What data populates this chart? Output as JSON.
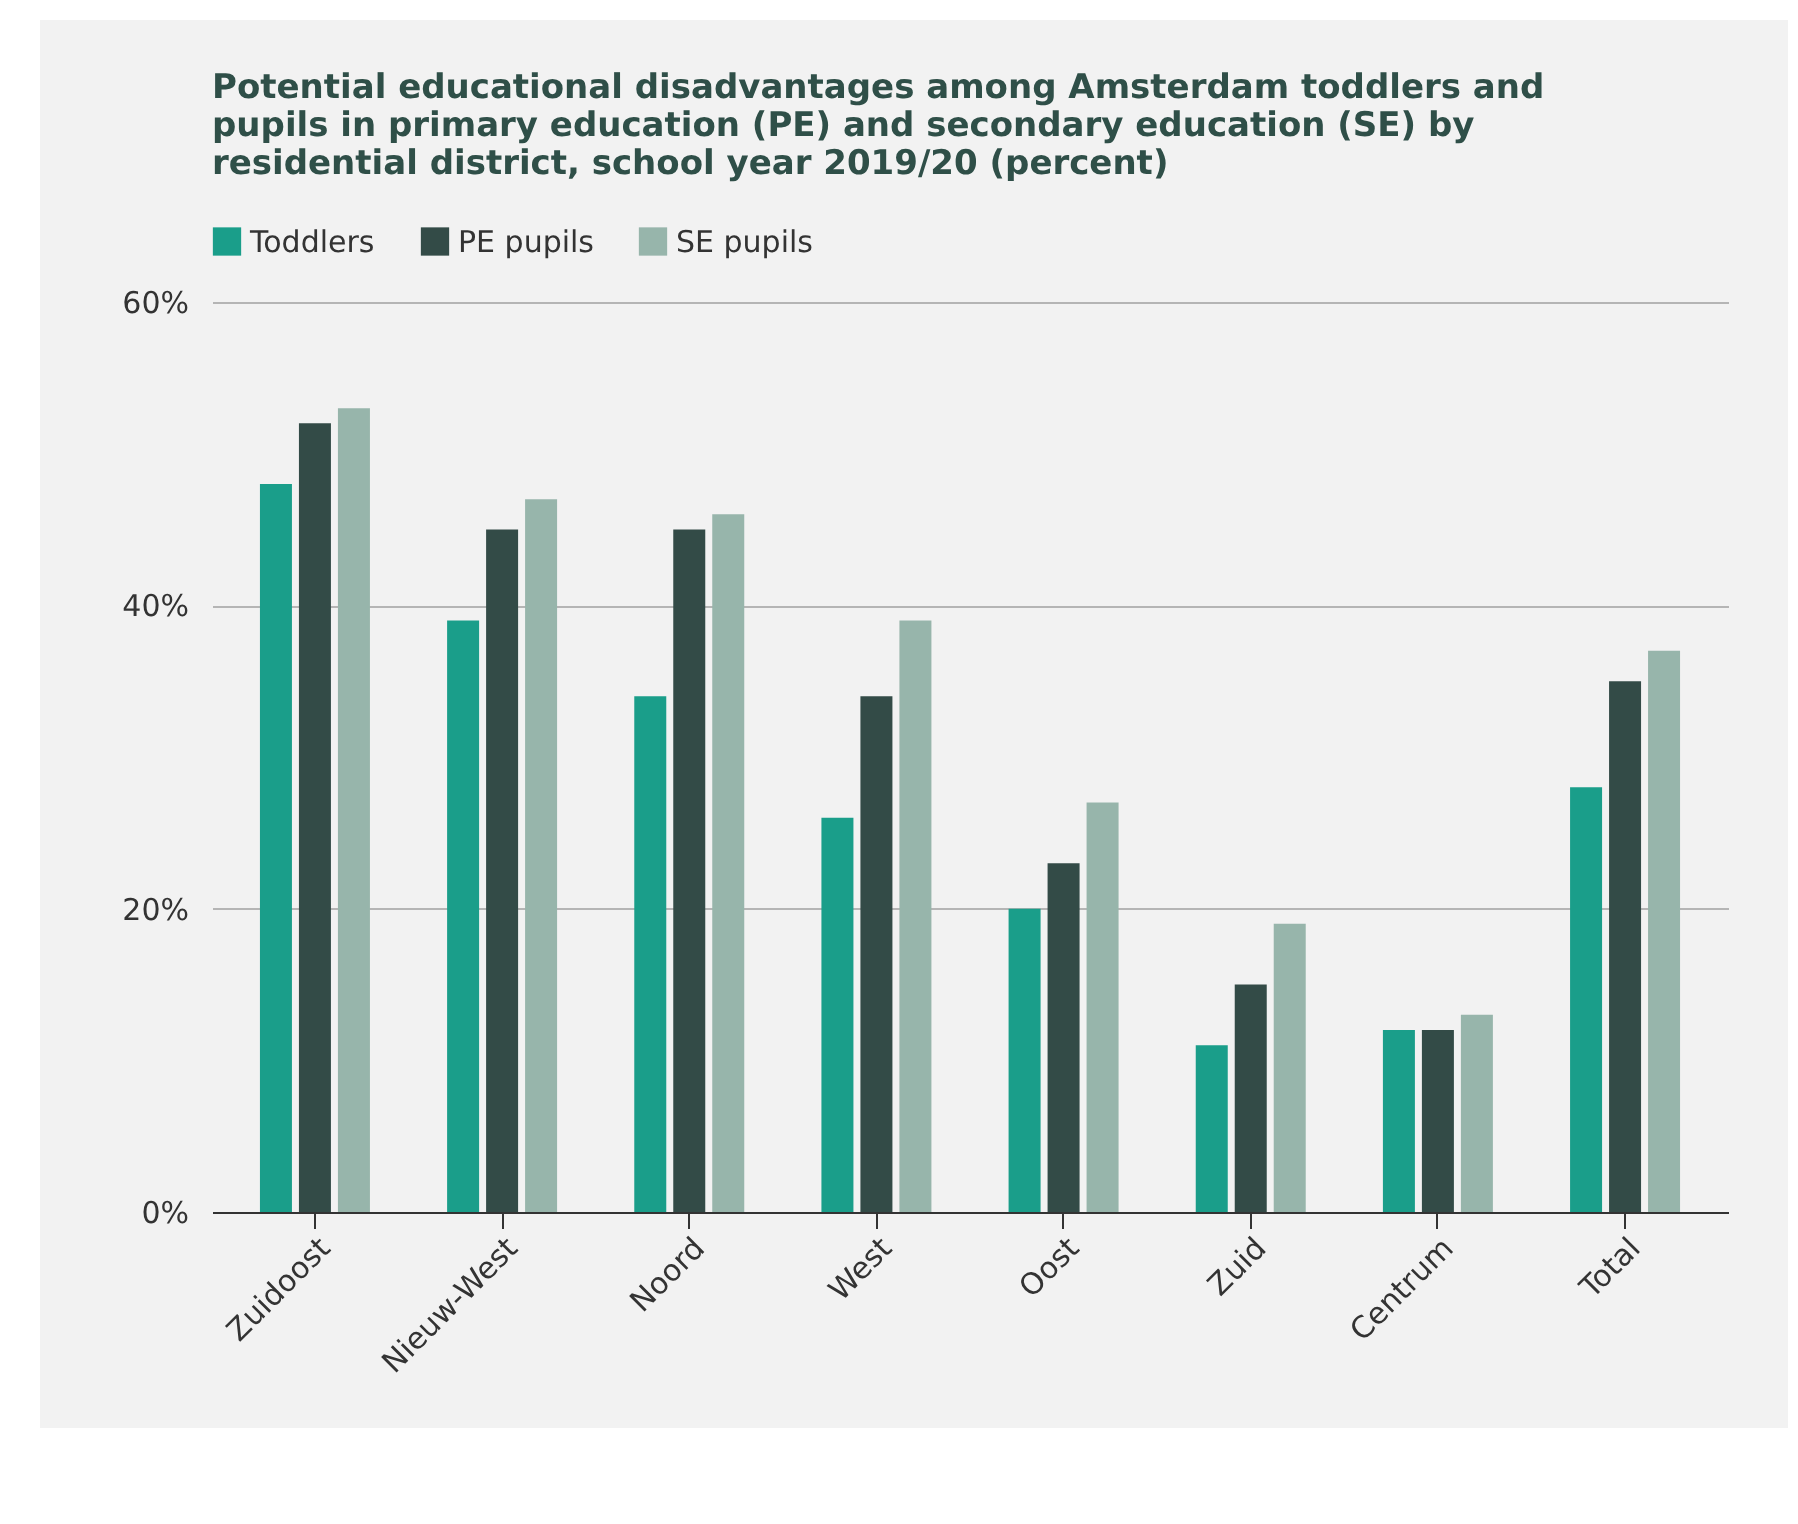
{
  "chart_data": {
    "type": "bar",
    "title": "Potential educational disadvantages among Amsterdam toddlers and pupils in primary education (PE) and secondary education (SE) by residential district, school year 2019/20 (percent)",
    "categories": [
      "Zuidoost",
      "Nieuw-West",
      "Noord",
      "West",
      "Oost",
      "Zuid",
      "Centrum",
      "Total"
    ],
    "series": [
      {
        "name": "Toddlers",
        "color": "#1a9e8a",
        "values": [
          48,
          39,
          34,
          26,
          20,
          11,
          12,
          28
        ]
      },
      {
        "name": "PE pupils",
        "color": "#334b47",
        "values": [
          52,
          45,
          45,
          34,
          23,
          15,
          12,
          35
        ]
      },
      {
        "name": "SE pupils",
        "color": "#97b5ab",
        "values": [
          53,
          47,
          46,
          39,
          27,
          19,
          13,
          37
        ]
      }
    ],
    "ylim": [
      0,
      60
    ],
    "yticks": [
      {
        "value": 0,
        "label": "0%"
      },
      {
        "value": 20,
        "label": "20%"
      },
      {
        "value": 40,
        "label": "40%"
      },
      {
        "value": 60,
        "label": "60%"
      }
    ],
    "grid": "y",
    "legend": "top"
  }
}
